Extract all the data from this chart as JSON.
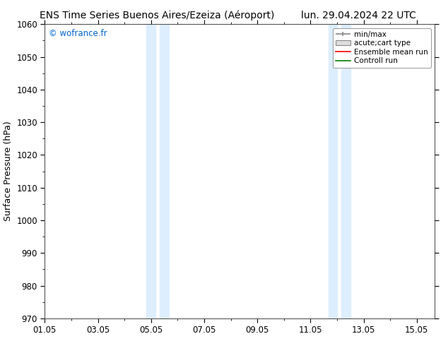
{
  "title_left": "ENS Time Series Buenos Aires/Ezeiza (Aéroport)",
  "title_right": "lun. 29.04.2024 22 UTC",
  "ylabel": "Surface Pressure (hPa)",
  "ylim": [
    970,
    1060
  ],
  "yticks": [
    970,
    980,
    990,
    1000,
    1010,
    1020,
    1030,
    1040,
    1050,
    1060
  ],
  "xtick_labels": [
    "01.05",
    "03.05",
    "05.05",
    "07.05",
    "09.05",
    "11.05",
    "13.05",
    "15.05"
  ],
  "xtick_positions": [
    0,
    2,
    4,
    6,
    8,
    10,
    12,
    14
  ],
  "xlim": [
    0,
    14.67
  ],
  "shaded_regions": [
    {
      "start": 3.83,
      "end": 4.17
    },
    {
      "start": 4.33,
      "end": 4.67
    },
    {
      "start": 10.67,
      "end": 11.0
    },
    {
      "start": 11.17,
      "end": 11.5
    }
  ],
  "shade_color": "#ddeeff",
  "background_color": "#ffffff",
  "plot_bg_color": "#ffffff",
  "watermark": "© wofrance.fr",
  "watermark_color": "#0066cc",
  "legend_entries": [
    "min/max",
    "acute;cart type",
    "Ensemble mean run",
    "Controll run"
  ],
  "legend_colors": [
    "#888888",
    "#cccccc",
    "#ff0000",
    "#008000"
  ],
  "title_fontsize": 10,
  "label_fontsize": 9,
  "tick_fontsize": 8.5
}
